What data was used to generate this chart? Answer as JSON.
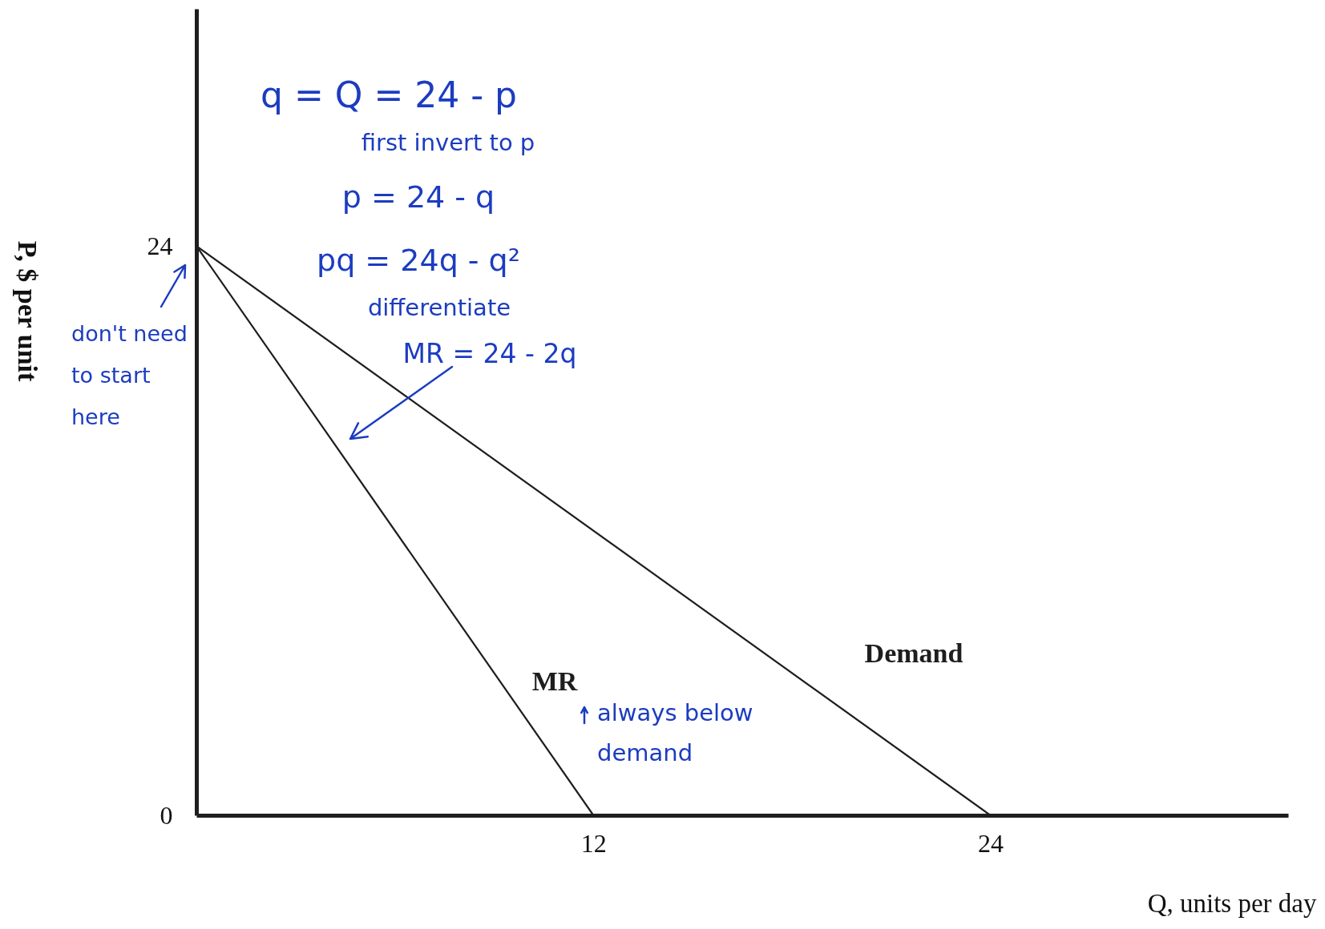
{
  "chart_data": {
    "type": "line",
    "xlabel": "Q, units per day",
    "ylabel": "P, $ per unit",
    "series": [
      {
        "name": "Demand",
        "color": "#1e1e1e",
        "x": [
          0,
          24
        ],
        "values": [
          24,
          0
        ]
      },
      {
        "name": "MR",
        "color": "#1e1e1e",
        "x": [
          0,
          12
        ],
        "values": [
          24,
          0
        ]
      }
    ],
    "xlim": [
      0,
      33
    ],
    "ylim": [
      0,
      34
    ],
    "xticks": [
      12,
      24
    ],
    "yticks": [
      0,
      24
    ],
    "grid": false,
    "marker": "none",
    "line_style": "solid",
    "annotations": [
      "q = Q = 24 - p",
      "first invert to p",
      "p = 24 - q",
      "pq = 24q - q²",
      "differentiate",
      "MR = 24 - 2q",
      "don't need to start here",
      "always below demand"
    ]
  }
}
